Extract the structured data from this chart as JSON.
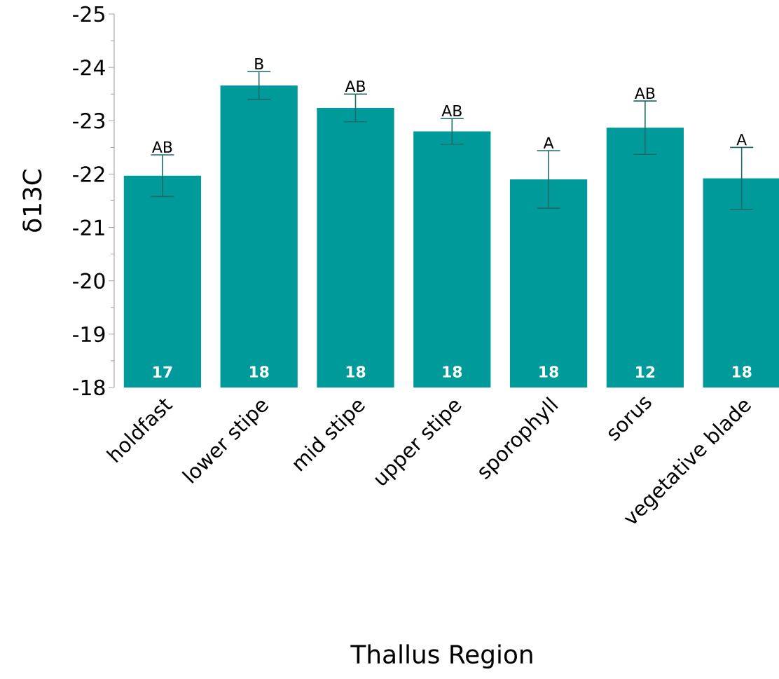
{
  "chart_data": {
    "type": "bar",
    "xlabel": "Thallus Region",
    "ylabel": "δ13C",
    "categories": [
      "holdfast",
      "lower stipe",
      "mid stipe",
      "upper stipe",
      "sporophyll",
      "sorus",
      "vegetative blade"
    ],
    "values": [
      -21.97,
      -23.66,
      -23.24,
      -22.8,
      -21.9,
      -22.87,
      -21.92
    ],
    "errors": [
      0.39,
      0.26,
      0.26,
      0.24,
      0.54,
      0.5,
      0.58
    ],
    "color": "#009a9a",
    "ylim": [
      -18,
      -25
    ],
    "yticks": [
      -18,
      -19,
      -20,
      -21,
      -22,
      -23,
      -24,
      -25
    ],
    "annotations": [
      {
        "text": "AB",
        "x": "holdfast",
        "y": -22.36
      },
      {
        "text": "B",
        "x": "lower stipe",
        "y": -23.92
      },
      {
        "text": "AB",
        "x": "mid stipe",
        "y": -23.5
      },
      {
        "text": "AB",
        "x": "upper stipe",
        "y": -23.04
      },
      {
        "text": "A",
        "x": "sporophyll",
        "y": -22.44
      },
      {
        "text": "AB",
        "x": "sorus",
        "y": -23.37
      },
      {
        "text": "A",
        "x": "vegetative blade",
        "y": -22.5
      },
      "**17**",
      "**18**",
      "**18**",
      "**18**",
      "**18**",
      "**12**",
      "**18**"
    ]
  }
}
